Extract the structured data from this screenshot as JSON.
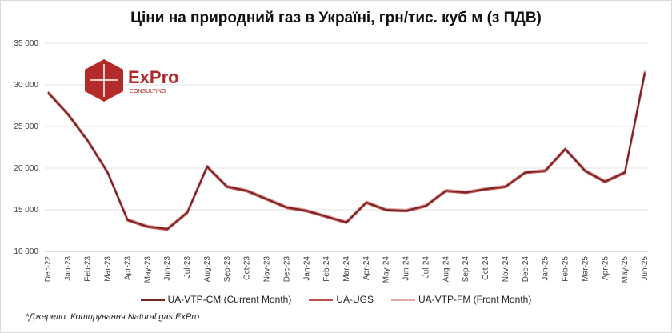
{
  "title": "Ціни на природний газ в Україні, грн/тис. куб м (з ПДВ)",
  "source": "*Джерело: Котирування Natural gas ExPro",
  "logo": {
    "name": "ExPro",
    "sub": "CONSULTING"
  },
  "chart_data": {
    "type": "line",
    "ylim": [
      10000,
      35000
    ],
    "yticks": [
      10000,
      15000,
      20000,
      25000,
      30000,
      35000
    ],
    "ytick_labels": [
      "10 000",
      "15 000",
      "20 000",
      "25 000",
      "30 000",
      "35 000"
    ],
    "grid": "horizontal",
    "legend_position": "bottom",
    "x": [
      "Dec-22",
      "Jan-23",
      "Feb-23",
      "Mar-23",
      "Apr-23",
      "May-23",
      "Jun-23",
      "Jul-23",
      "Aug-23",
      "Sep-23",
      "Oct-23",
      "Nov-23",
      "Dec-23",
      "Jan-24",
      "Feb-24",
      "Mar-24",
      "Apr-24",
      "May-24",
      "Jun-24",
      "Jul-24",
      "Aug-24",
      "Sep-24",
      "Oct-24",
      "Nov-24",
      "Dec-24",
      "Jan-25",
      "Feb-25",
      "Mar-25",
      "Apr-25",
      "May-25",
      "Jun-25"
    ],
    "series": [
      {
        "name": "UA-VTP-CM (Current Month)",
        "color": "#7b2323",
        "values": [
          29100,
          26500,
          23300,
          19500,
          13800,
          13000,
          12700,
          14700,
          20200,
          17800,
          17300,
          16300,
          15300,
          14900,
          14200,
          13500,
          15900,
          15000,
          14900,
          15500,
          17300,
          17100,
          17500,
          17800,
          19500,
          19700,
          22300,
          19700,
          18400,
          19500,
          31500
        ]
      },
      {
        "name": "UA-UGS",
        "color": "#c0504d",
        "values": [
          29000,
          26400,
          23200,
          19400,
          13700,
          12900,
          12600,
          14600,
          20100,
          17700,
          17200,
          16200,
          15200,
          14800,
          14100,
          13400,
          15800,
          14900,
          14800,
          15400,
          17200,
          17000,
          17400,
          17700,
          19400,
          19600,
          22200,
          19600,
          18300,
          19400,
          31300
        ]
      },
      {
        "name": "UA-VTP-FM (Front Month)",
        "color": "#e0a8a6",
        "values": [
          29200,
          26600,
          23400,
          19600,
          13900,
          13100,
          12800,
          14800,
          20300,
          17900,
          17400,
          16400,
          15400,
          15000,
          14300,
          13600,
          16000,
          15100,
          15000,
          15600,
          17400,
          17200,
          17600,
          17900,
          19600,
          19800,
          22400,
          19800,
          18500,
          19600,
          31700
        ]
      }
    ]
  }
}
